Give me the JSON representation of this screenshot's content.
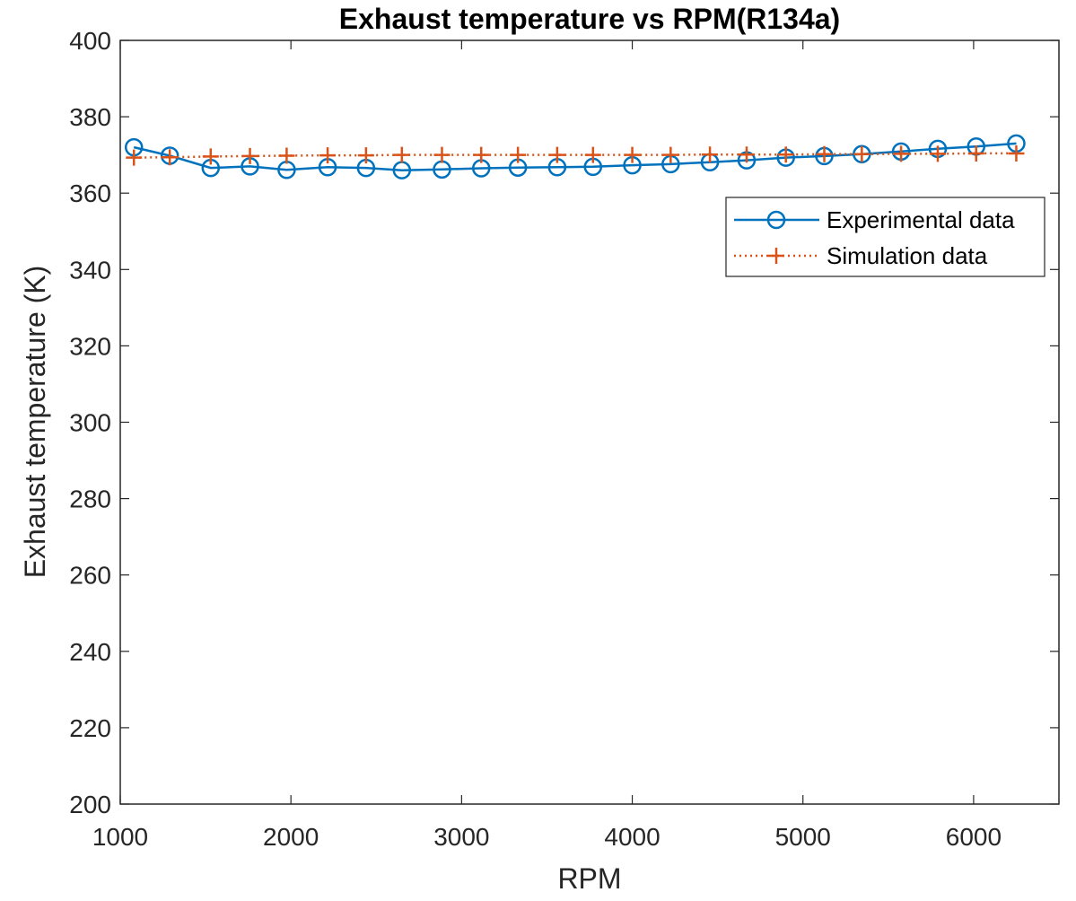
{
  "chart_data": {
    "type": "line",
    "title": "Exhaust temperature vs RPM(R134a)",
    "xlabel": "RPM",
    "ylabel": "Exhaust temperature (K)",
    "xlim": [
      1000,
      6500
    ],
    "ylim": [
      200,
      400
    ],
    "xticks": [
      1000,
      2000,
      3000,
      4000,
      5000,
      6000
    ],
    "yticks": [
      200,
      220,
      240,
      260,
      280,
      300,
      320,
      340,
      360,
      380,
      400
    ],
    "grid": false,
    "legend_position": "upper-right",
    "series": [
      {
        "name": "Experimental data",
        "color": "#0072BD",
        "line_style": "solid",
        "marker": "circle",
        "x": [
          1080,
          1290,
          1530,
          1760,
          1975,
          2215,
          2440,
          2650,
          2885,
          3115,
          3330,
          3560,
          3770,
          4000,
          4225,
          4455,
          4670,
          4900,
          5125,
          5345,
          5575,
          5790,
          6015,
          6250
        ],
        "y": [
          372.0,
          369.8,
          366.6,
          367.0,
          366.1,
          366.8,
          366.6,
          366.0,
          366.2,
          366.5,
          366.7,
          366.8,
          366.9,
          367.3,
          367.6,
          368.1,
          368.6,
          369.3,
          369.7,
          370.2,
          370.9,
          371.6,
          372.2,
          373.0
        ]
      },
      {
        "name": "Simulation data",
        "color": "#D95319",
        "line_style": "dotted",
        "marker": "plus",
        "x": [
          1080,
          1290,
          1530,
          1760,
          1975,
          2215,
          2440,
          2650,
          2885,
          3115,
          3330,
          3560,
          3770,
          4000,
          4225,
          4455,
          4670,
          4900,
          5125,
          5345,
          5575,
          5790,
          6015,
          6250
        ],
        "y": [
          369.3,
          369.4,
          369.6,
          369.7,
          369.8,
          369.9,
          369.9,
          370.0,
          370.0,
          370.0,
          370.0,
          370.0,
          370.0,
          370.0,
          370.0,
          370.1,
          370.1,
          370.1,
          370.2,
          370.2,
          370.3,
          370.3,
          370.4,
          370.4
        ]
      }
    ]
  }
}
